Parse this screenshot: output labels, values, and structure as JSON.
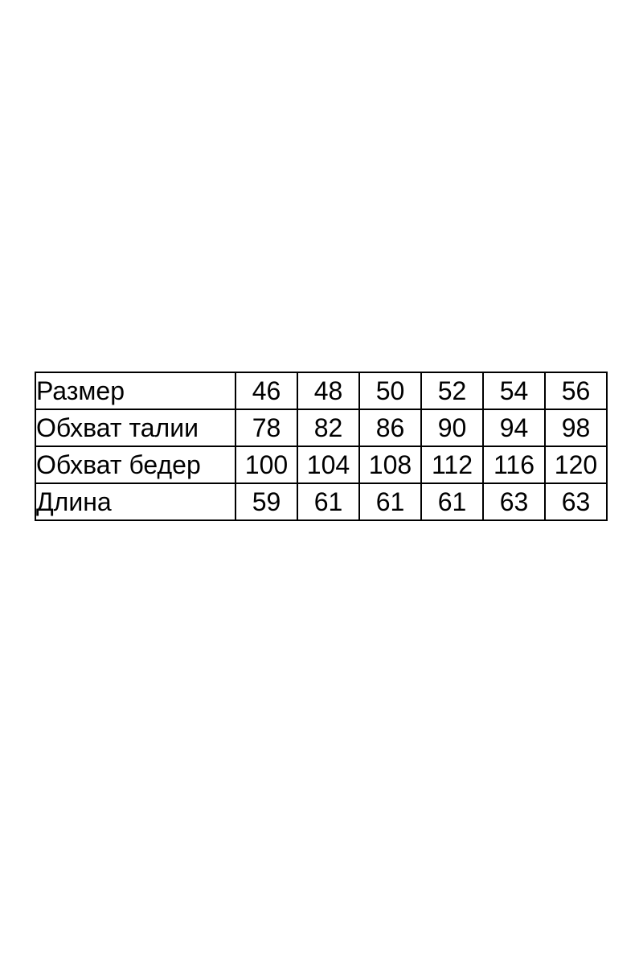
{
  "size_table": {
    "rows": [
      {
        "label": "Размер",
        "values": [
          "46",
          "48",
          "50",
          "52",
          "54",
          "56"
        ]
      },
      {
        "label": "Обхват талии",
        "values": [
          "78",
          "82",
          "86",
          "90",
          "94",
          "98"
        ]
      },
      {
        "label": "Обхват бедер",
        "values": [
          "100",
          "104",
          "108",
          "112",
          "116",
          "120"
        ]
      },
      {
        "label": "Длина",
        "values": [
          "59",
          "61",
          "61",
          "61",
          "63",
          "63"
        ]
      }
    ]
  }
}
